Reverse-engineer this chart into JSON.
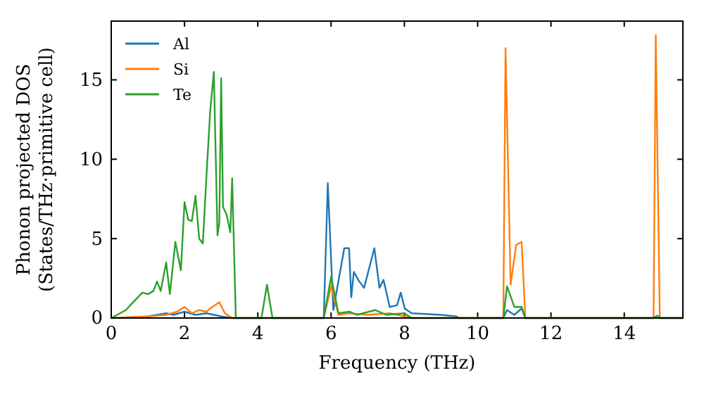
{
  "chart_data": {
    "type": "line",
    "xlabel": "Frequency (THz)",
    "ylabel": "Phonon projected DOS\n(States/THz·primitive cell)",
    "xlim": [
      0,
      15.6
    ],
    "ylim": [
      0,
      18.7
    ],
    "xticks": [
      0,
      2,
      4,
      6,
      8,
      10,
      12,
      14
    ],
    "yticks": [
      0,
      5,
      10,
      15
    ],
    "legend": "top left",
    "grid": false,
    "series": [
      {
        "name": "Al",
        "color": "#1f77b4",
        "x": [
          0,
          1,
          1.5,
          1.7,
          2.0,
          2.3,
          2.6,
          3.0,
          3.3,
          5.8,
          5.91,
          6.06,
          6.36,
          6.49,
          6.55,
          6.62,
          6.77,
          6.9,
          7.18,
          7.32,
          7.43,
          7.6,
          7.8,
          7.9,
          8.01,
          8.2,
          9.0,
          9.42,
          9.5,
          10.7,
          10.8,
          11.0,
          11.2,
          11.3,
          15.6
        ],
        "values": [
          0,
          0.1,
          0.3,
          0.2,
          0.4,
          0.2,
          0.3,
          0.1,
          0,
          0,
          8.5,
          0.5,
          4.4,
          4.4,
          1.3,
          2.9,
          2.3,
          1.9,
          4.4,
          1.9,
          2.4,
          0.7,
          0.8,
          1.6,
          0.6,
          0.3,
          0.2,
          0.1,
          0,
          0,
          0.5,
          0.2,
          0.6,
          0,
          0
        ]
      },
      {
        "name": "Si",
        "color": "#ff7f0e",
        "x": [
          0,
          1,
          1.5,
          1.8,
          2.0,
          2.2,
          2.4,
          2.6,
          2.7,
          2.95,
          3.1,
          3.3,
          5.8,
          6.0,
          6.2,
          6.5,
          7.0,
          7.6,
          8.0,
          8.2,
          10.7,
          10.76,
          10.9,
          11.05,
          11.2,
          11.3,
          14.8,
          14.86,
          14.97,
          15.6
        ],
        "values": [
          0,
          0.1,
          0.2,
          0.4,
          0.7,
          0.3,
          0.5,
          0.4,
          0.6,
          1.0,
          0.3,
          0,
          0,
          2.0,
          0.2,
          0.3,
          0.2,
          0.3,
          0.1,
          0,
          0,
          17.0,
          2.1,
          4.6,
          4.8,
          0,
          0,
          17.8,
          0,
          0
        ]
      },
      {
        "name": "Te",
        "color": "#2ca02c",
        "x": [
          0,
          0.4,
          0.6,
          0.85,
          1.0,
          1.15,
          1.25,
          1.35,
          1.5,
          1.6,
          1.75,
          1.9,
          2.0,
          2.1,
          2.2,
          2.3,
          2.4,
          2.5,
          2.6,
          2.7,
          2.8,
          2.9,
          2.95,
          3.0,
          3.05,
          3.15,
          3.25,
          3.3,
          3.4,
          4.1,
          4.25,
          4.4,
          5.8,
          6.0,
          6.2,
          6.5,
          6.7,
          7.2,
          7.5,
          8.0,
          8.2,
          10.7,
          10.8,
          11.0,
          11.2,
          11.3,
          14.8,
          14.9,
          15.0,
          15.6
        ],
        "values": [
          0,
          0.5,
          1.0,
          1.6,
          1.5,
          1.7,
          2.3,
          1.7,
          3.5,
          1.5,
          4.8,
          3.0,
          7.3,
          6.2,
          6.1,
          7.7,
          5.0,
          4.7,
          9,
          13,
          15.5,
          5.2,
          6,
          15.1,
          7,
          6.5,
          5.4,
          8.8,
          0,
          0,
          2.1,
          0,
          0,
          2.6,
          0.3,
          0.4,
          0.2,
          0.5,
          0.2,
          0.3,
          0,
          0,
          2.0,
          0.7,
          0.7,
          0,
          0,
          0.15,
          0,
          0
        ]
      }
    ]
  }
}
